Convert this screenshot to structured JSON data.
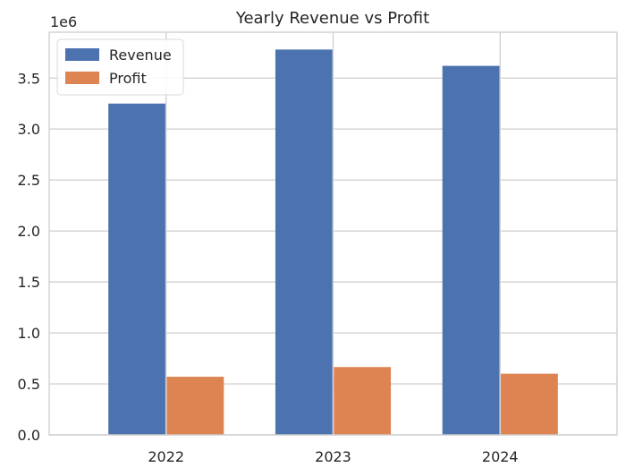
{
  "chart_data": {
    "type": "bar",
    "title": "Yearly Revenue vs Profit",
    "categories": [
      "2022",
      "2023",
      "2024"
    ],
    "series": [
      {
        "name": "Revenue",
        "color": "#4c72b0",
        "values": [
          3250000,
          3780000,
          3620000
        ]
      },
      {
        "name": "Profit",
        "color": "#dd8452",
        "values": [
          570000,
          665000,
          600000
        ]
      }
    ],
    "ylim": [
      0,
      3950000
    ],
    "yticks": [
      0,
      500000,
      1000000,
      1500000,
      2000000,
      2500000,
      3000000,
      3500000
    ],
    "ytick_labels": [
      "0.0",
      "0.5",
      "1.0",
      "1.5",
      "2.0",
      "2.5",
      "3.0",
      "3.5"
    ],
    "y_offset_label": "1e6",
    "grid": true,
    "legend_position": "top-left"
  }
}
